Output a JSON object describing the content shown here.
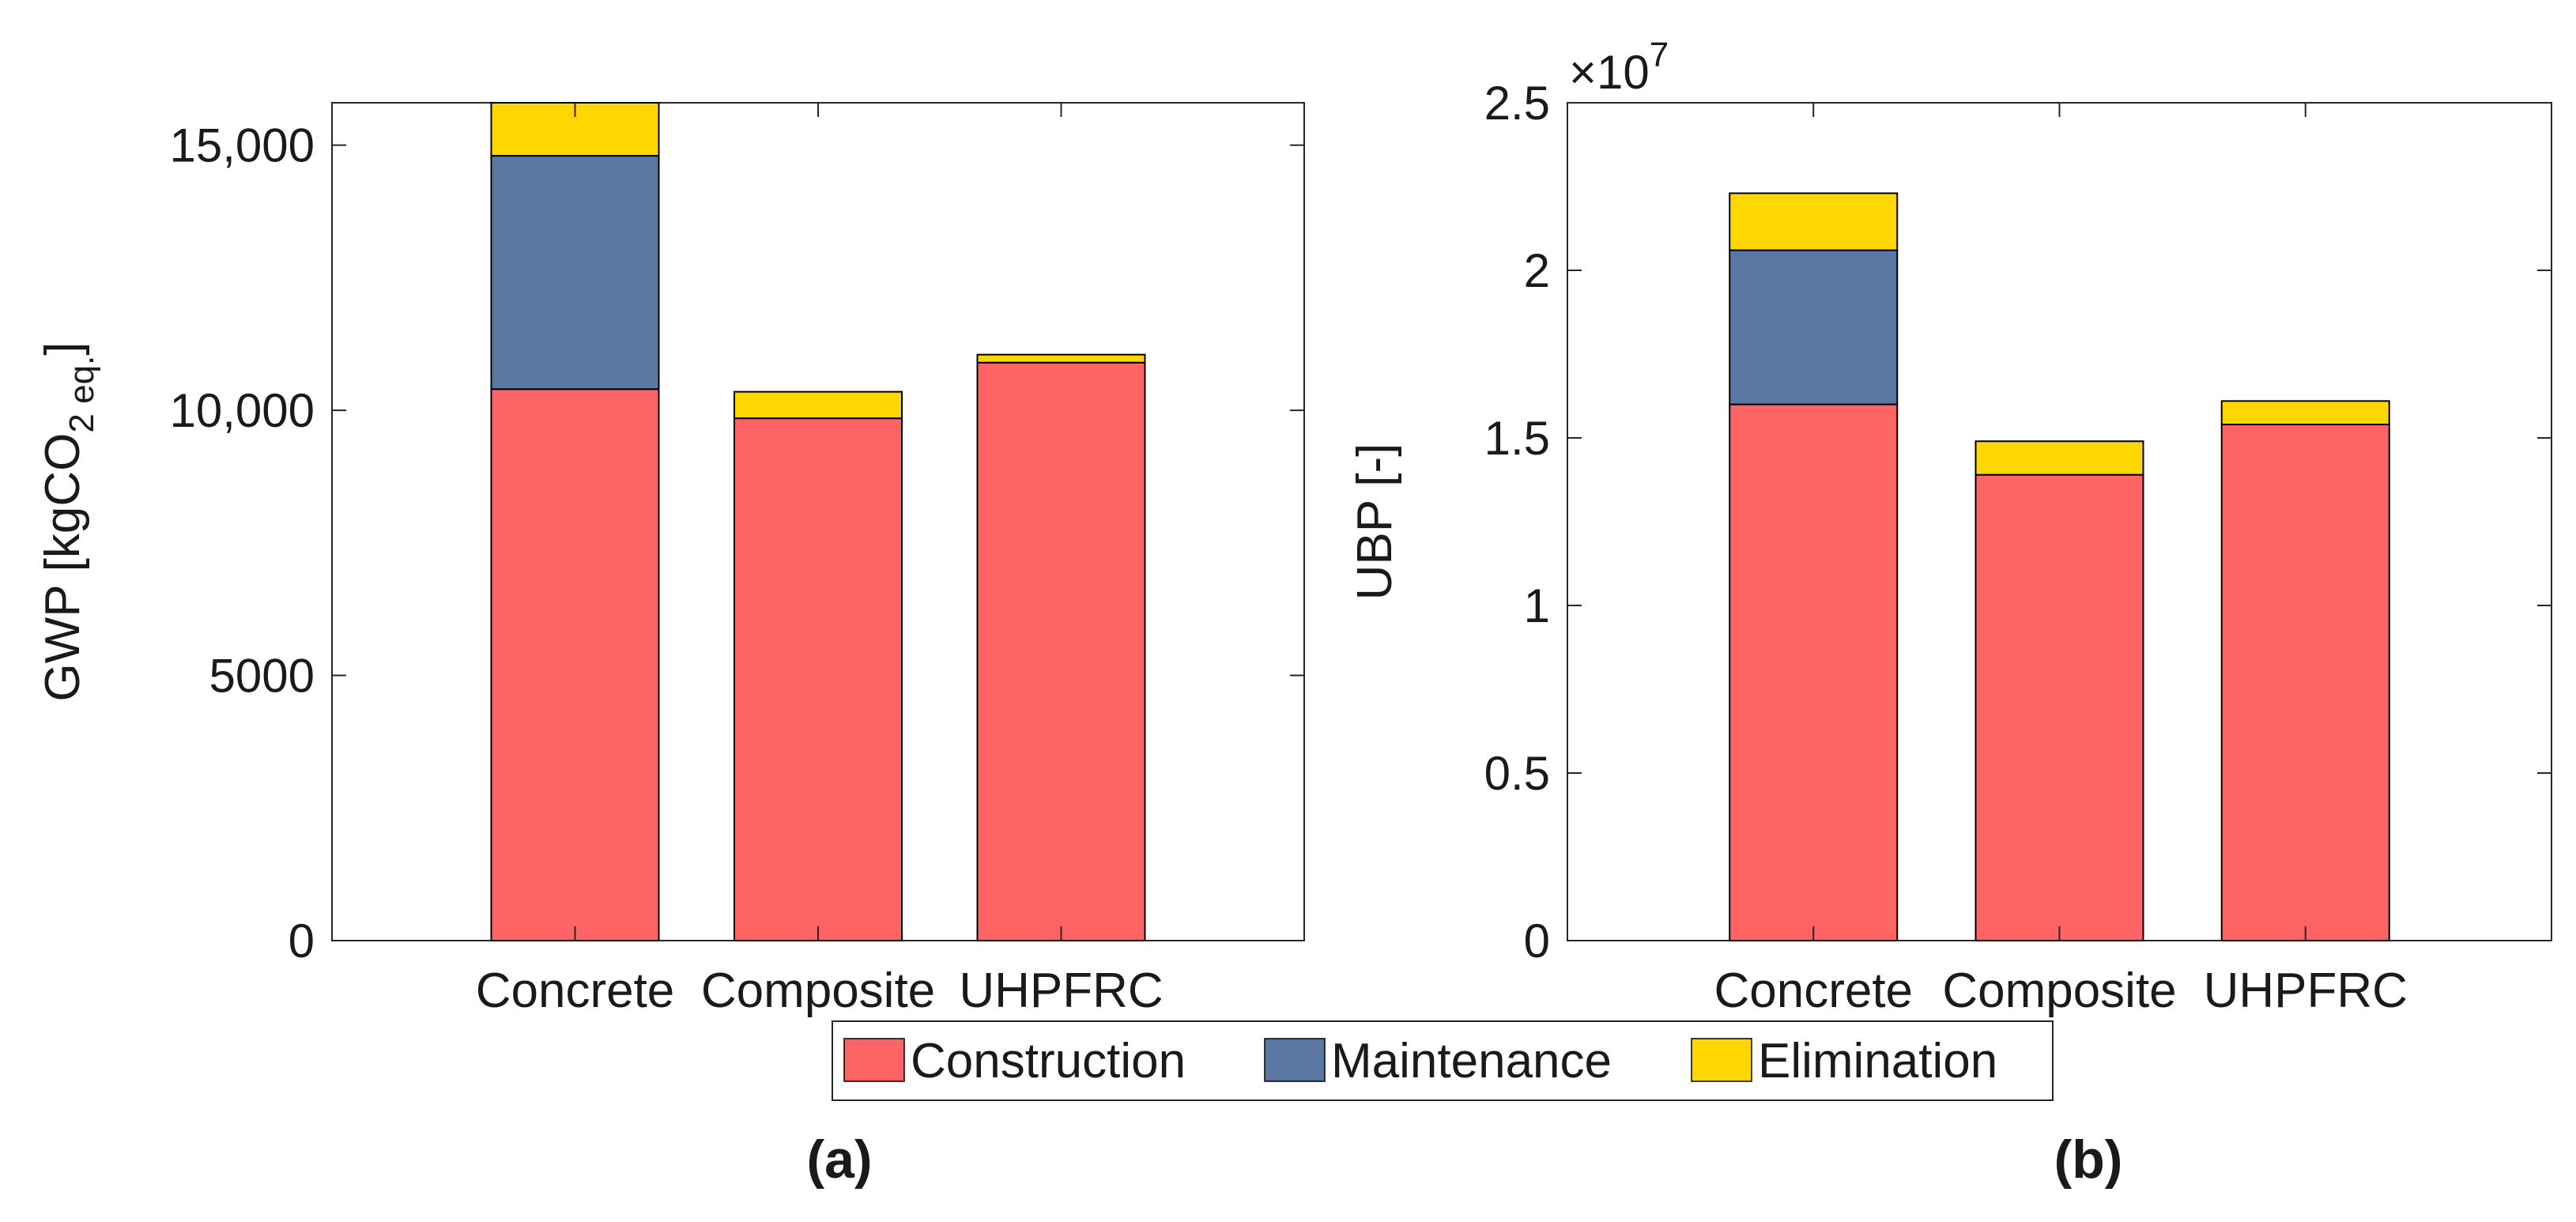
{
  "colors": {
    "construction": "#FF6464",
    "maintenance": "#5B77A3",
    "elimination": "#FFD700",
    "axis": "#262626"
  },
  "legend": {
    "entries": [
      "Construction",
      "Maintenance",
      "Elimination"
    ],
    "placement": "bottom-center"
  },
  "panels": [
    {
      "label": "(a)"
    },
    {
      "label": "(b)"
    }
  ],
  "chart_data": [
    {
      "type": "bar",
      "stacked": true,
      "categories": [
        "Concrete",
        "Composite",
        "UHPFRC"
      ],
      "series": [
        {
          "name": "Construction",
          "values": [
            10400,
            9850,
            10900
          ]
        },
        {
          "name": "Maintenance",
          "values": [
            4400,
            0,
            0
          ]
        },
        {
          "name": "Elimination",
          "values": [
            1000,
            500,
            150
          ]
        }
      ],
      "ylabel": "GWP [kgCO",
      "ylabel_sub": "2 eq.",
      "ylabel_end": "]",
      "ylim": [
        0,
        15800
      ],
      "yticks": [
        0,
        5000,
        10000,
        15000
      ],
      "ytick_labels": [
        "0",
        "5000",
        "10,000",
        "15,000"
      ],
      "yexponent": "",
      "grid": false
    },
    {
      "type": "bar",
      "stacked": true,
      "categories": [
        "Concrete",
        "Composite",
        "UHPFRC"
      ],
      "series": [
        {
          "name": "Construction",
          "values": [
            1.6,
            1.39,
            1.54
          ]
        },
        {
          "name": "Maintenance",
          "values": [
            0.46,
            0,
            0
          ]
        },
        {
          "name": "Elimination",
          "values": [
            0.17,
            0.1,
            0.07
          ]
        }
      ],
      "ylabel": "UBP [-]",
      "ylabel_sub": "",
      "ylabel_end": "",
      "ylim": [
        0,
        2.5
      ],
      "yticks": [
        0,
        0.5,
        1,
        1.5,
        2,
        2.5
      ],
      "ytick_labels": [
        "0",
        "0.5",
        "1",
        "1.5",
        "2",
        "2.5"
      ],
      "yexponent": "×10",
      "yexponent_power": "7",
      "grid": false
    }
  ]
}
